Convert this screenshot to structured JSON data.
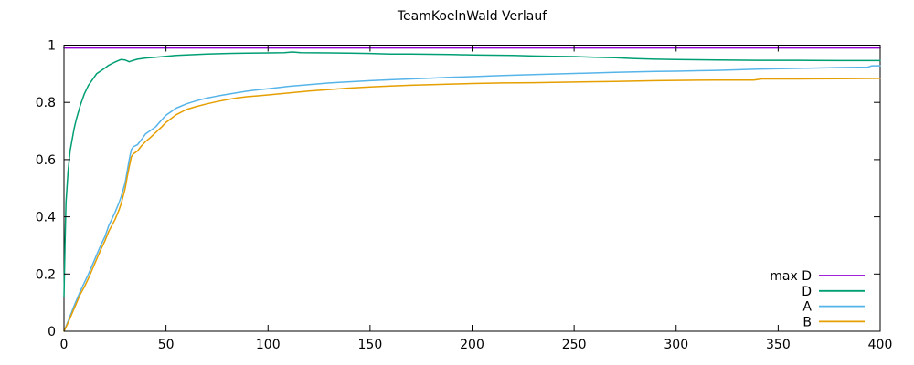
{
  "title": "TeamKoelnWald Verlauf",
  "chart_data": {
    "type": "line",
    "title": "TeamKoelnWald Verlauf",
    "xlabel": "",
    "ylabel": "",
    "xlim": [
      0,
      400
    ],
    "ylim": [
      0,
      1
    ],
    "x_ticks": [
      0,
      50,
      100,
      150,
      200,
      250,
      300,
      350,
      400
    ],
    "x_tick_labels": [
      "0",
      "50",
      "100",
      "150",
      "200",
      "250",
      "300",
      "350",
      "400"
    ],
    "y_ticks": [
      0,
      0.2,
      0.4,
      0.6,
      0.8,
      1
    ],
    "y_tick_labels": [
      "0",
      "0.2",
      "0.4",
      "0.6",
      "0.8",
      "1"
    ],
    "grid": false,
    "frame": true,
    "legend_position": "inside-bottom-right",
    "axis_color": "#000000",
    "series": [
      {
        "name": "max D",
        "color": "#9400d3",
        "points": [
          [
            0,
            0.99
          ],
          [
            400,
            0.99
          ]
        ]
      },
      {
        "name": "D",
        "color": "#009e73",
        "points": [
          [
            0,
            0.12
          ],
          [
            0.5,
            0.3
          ],
          [
            1,
            0.45
          ],
          [
            2,
            0.56
          ],
          [
            3,
            0.63
          ],
          [
            4,
            0.67
          ],
          [
            5,
            0.71
          ],
          [
            6,
            0.74
          ],
          [
            8,
            0.79
          ],
          [
            10,
            0.83
          ],
          [
            12,
            0.86
          ],
          [
            14,
            0.88
          ],
          [
            16,
            0.9
          ],
          [
            18,
            0.91
          ],
          [
            20,
            0.92
          ],
          [
            22,
            0.93
          ],
          [
            25,
            0.941
          ],
          [
            28,
            0.95
          ],
          [
            30,
            0.948
          ],
          [
            32,
            0.942
          ],
          [
            34,
            0.947
          ],
          [
            36,
            0.951
          ],
          [
            40,
            0.955
          ],
          [
            45,
            0.958
          ],
          [
            50,
            0.961
          ],
          [
            55,
            0.964
          ],
          [
            60,
            0.966
          ],
          [
            70,
            0.969
          ],
          [
            80,
            0.971
          ],
          [
            90,
            0.972
          ],
          [
            100,
            0.973
          ],
          [
            108,
            0.974
          ],
          [
            112,
            0.976
          ],
          [
            116,
            0.974
          ],
          [
            130,
            0.973
          ],
          [
            140,
            0.972
          ],
          [
            150,
            0.971
          ],
          [
            160,
            0.969
          ],
          [
            170,
            0.969
          ],
          [
            180,
            0.968
          ],
          [
            190,
            0.967
          ],
          [
            200,
            0.966
          ],
          [
            210,
            0.965
          ],
          [
            220,
            0.964
          ],
          [
            230,
            0.962
          ],
          [
            240,
            0.961
          ],
          [
            250,
            0.96
          ],
          [
            260,
            0.958
          ],
          [
            270,
            0.956
          ],
          [
            280,
            0.953
          ],
          [
            290,
            0.951
          ],
          [
            300,
            0.95
          ],
          [
            310,
            0.949
          ],
          [
            320,
            0.948
          ],
          [
            340,
            0.947
          ],
          [
            360,
            0.947
          ],
          [
            380,
            0.946
          ],
          [
            400,
            0.946
          ]
        ]
      },
      {
        "name": "A",
        "color": "#56b4e9",
        "points": [
          [
            0,
            0.0
          ],
          [
            2,
            0.035
          ],
          [
            5,
            0.09
          ],
          [
            8,
            0.14
          ],
          [
            10,
            0.17
          ],
          [
            12,
            0.2
          ],
          [
            15,
            0.25
          ],
          [
            18,
            0.3
          ],
          [
            20,
            0.33
          ],
          [
            22,
            0.37
          ],
          [
            25,
            0.415
          ],
          [
            27,
            0.45
          ],
          [
            28,
            0.47
          ],
          [
            30,
            0.52
          ],
          [
            31,
            0.56
          ],
          [
            32,
            0.6
          ],
          [
            33,
            0.635
          ],
          [
            34,
            0.645
          ],
          [
            36,
            0.652
          ],
          [
            38,
            0.67
          ],
          [
            40,
            0.69
          ],
          [
            42,
            0.7
          ],
          [
            45,
            0.715
          ],
          [
            48,
            0.74
          ],
          [
            50,
            0.755
          ],
          [
            55,
            0.78
          ],
          [
            60,
            0.795
          ],
          [
            65,
            0.806
          ],
          [
            70,
            0.815
          ],
          [
            75,
            0.822
          ],
          [
            80,
            0.828
          ],
          [
            85,
            0.834
          ],
          [
            90,
            0.84
          ],
          [
            95,
            0.844
          ],
          [
            100,
            0.848
          ],
          [
            110,
            0.856
          ],
          [
            120,
            0.862
          ],
          [
            130,
            0.868
          ],
          [
            140,
            0.872
          ],
          [
            150,
            0.876
          ],
          [
            160,
            0.879
          ],
          [
            170,
            0.882
          ],
          [
            180,
            0.885
          ],
          [
            190,
            0.888
          ],
          [
            200,
            0.89
          ],
          [
            215,
            0.894
          ],
          [
            230,
            0.897
          ],
          [
            250,
            0.901
          ],
          [
            270,
            0.905
          ],
          [
            290,
            0.908
          ],
          [
            300,
            0.909
          ],
          [
            320,
            0.912
          ],
          [
            340,
            0.916
          ],
          [
            360,
            0.919
          ],
          [
            380,
            0.922
          ],
          [
            394,
            0.923
          ],
          [
            396,
            0.928
          ],
          [
            400,
            0.928
          ]
        ]
      },
      {
        "name": "B",
        "color": "#e69f00",
        "points": [
          [
            0,
            0.0
          ],
          [
            2,
            0.03
          ],
          [
            5,
            0.08
          ],
          [
            8,
            0.13
          ],
          [
            10,
            0.155
          ],
          [
            12,
            0.185
          ],
          [
            15,
            0.235
          ],
          [
            18,
            0.285
          ],
          [
            20,
            0.315
          ],
          [
            22,
            0.35
          ],
          [
            25,
            0.39
          ],
          [
            27,
            0.425
          ],
          [
            28,
            0.445
          ],
          [
            30,
            0.5
          ],
          [
            31,
            0.54
          ],
          [
            32,
            0.575
          ],
          [
            33,
            0.61
          ],
          [
            34,
            0.62
          ],
          [
            36,
            0.63
          ],
          [
            38,
            0.648
          ],
          [
            40,
            0.663
          ],
          [
            42,
            0.675
          ],
          [
            45,
            0.695
          ],
          [
            48,
            0.715
          ],
          [
            50,
            0.73
          ],
          [
            55,
            0.757
          ],
          [
            60,
            0.775
          ],
          [
            65,
            0.786
          ],
          [
            70,
            0.795
          ],
          [
            75,
            0.803
          ],
          [
            80,
            0.81
          ],
          [
            85,
            0.816
          ],
          [
            90,
            0.82
          ],
          [
            95,
            0.823
          ],
          [
            100,
            0.826
          ],
          [
            110,
            0.833
          ],
          [
            120,
            0.84
          ],
          [
            130,
            0.845
          ],
          [
            140,
            0.85
          ],
          [
            150,
            0.854
          ],
          [
            160,
            0.857
          ],
          [
            170,
            0.86
          ],
          [
            180,
            0.862
          ],
          [
            190,
            0.864
          ],
          [
            200,
            0.866
          ],
          [
            215,
            0.868
          ],
          [
            230,
            0.869
          ],
          [
            250,
            0.871
          ],
          [
            270,
            0.873
          ],
          [
            290,
            0.876
          ],
          [
            300,
            0.877
          ],
          [
            320,
            0.878
          ],
          [
            338,
            0.878
          ],
          [
            342,
            0.882
          ],
          [
            360,
            0.882
          ],
          [
            380,
            0.883
          ],
          [
            400,
            0.884
          ]
        ]
      }
    ]
  }
}
